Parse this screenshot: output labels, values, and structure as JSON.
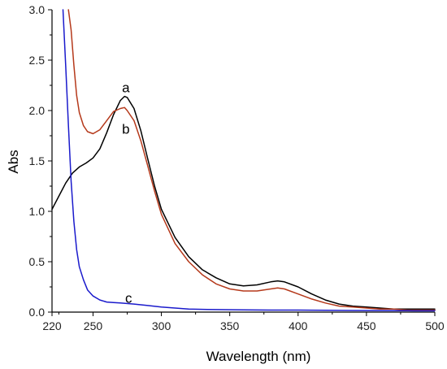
{
  "chart_data": {
    "type": "line",
    "title": "",
    "xlabel": "Wavelength (nm)",
    "ylabel": "Abs",
    "xlim": [
      220,
      500
    ],
    "ylim": [
      0,
      3.0
    ],
    "xticks": [
      220,
      250,
      300,
      350,
      400,
      450,
      500
    ],
    "xtick_labels": [
      "220",
      "250",
      "300",
      "350",
      "400",
      "450",
      "500"
    ],
    "yticks": [
      0,
      0.5,
      1.0,
      1.5,
      2.0,
      2.5,
      3.0
    ],
    "ytick_labels": [
      "0.0",
      "0.5",
      "1.0",
      "1.5",
      "2.0",
      "2.5",
      "3.0"
    ],
    "grid": false,
    "legend": "none",
    "series": [
      {
        "name": "a",
        "color": "#000000",
        "label_at": [
          274,
          2.23
        ],
        "x": [
          220,
          225,
          230,
          235,
          240,
          245,
          250,
          255,
          260,
          265,
          270,
          273,
          275,
          280,
          285,
          290,
          295,
          300,
          310,
          320,
          330,
          340,
          350,
          360,
          370,
          380,
          385,
          390,
          400,
          410,
          420,
          430,
          440,
          450,
          460,
          470,
          480,
          490,
          500
        ],
        "y": [
          1.02,
          1.15,
          1.28,
          1.38,
          1.44,
          1.48,
          1.53,
          1.62,
          1.78,
          1.96,
          2.1,
          2.14,
          2.13,
          2.02,
          1.8,
          1.52,
          1.25,
          1.02,
          0.74,
          0.55,
          0.42,
          0.34,
          0.28,
          0.26,
          0.27,
          0.3,
          0.31,
          0.3,
          0.25,
          0.18,
          0.12,
          0.08,
          0.06,
          0.05,
          0.04,
          0.03,
          0.03,
          0.03,
          0.03
        ]
      },
      {
        "name": "b",
        "color": "#b5391b",
        "label_at": [
          274,
          1.82
        ],
        "x": [
          232,
          234,
          236,
          238,
          240,
          243,
          246,
          250,
          255,
          260,
          265,
          270,
          273,
          275,
          280,
          285,
          290,
          295,
          300,
          310,
          320,
          330,
          340,
          350,
          360,
          370,
          380,
          385,
          390,
          400,
          410,
          420,
          430,
          440,
          450,
          460,
          470,
          480,
          490,
          500
        ],
        "y": [
          3.0,
          2.8,
          2.45,
          2.15,
          1.98,
          1.85,
          1.79,
          1.77,
          1.81,
          1.9,
          1.99,
          2.02,
          2.03,
          2.0,
          1.9,
          1.7,
          1.45,
          1.2,
          0.97,
          0.68,
          0.5,
          0.37,
          0.28,
          0.23,
          0.21,
          0.21,
          0.23,
          0.24,
          0.23,
          0.18,
          0.13,
          0.09,
          0.06,
          0.05,
          0.04,
          0.03,
          0.03,
          0.02,
          0.02,
          0.02
        ]
      },
      {
        "name": "c",
        "color": "#1a1acc",
        "label_at": [
          276,
          0.14
        ],
        "x": [
          228,
          230,
          232,
          234,
          236,
          238,
          240,
          243,
          246,
          250,
          255,
          260,
          265,
          270,
          280,
          290,
          300,
          320,
          340,
          360,
          380,
          400,
          420,
          440,
          460,
          480,
          500
        ],
        "y": [
          3.0,
          2.45,
          1.85,
          1.3,
          0.9,
          0.62,
          0.45,
          0.32,
          0.22,
          0.16,
          0.12,
          0.1,
          0.095,
          0.09,
          0.08,
          0.065,
          0.05,
          0.03,
          0.025,
          0.022,
          0.02,
          0.02,
          0.018,
          0.016,
          0.015,
          0.014,
          0.013
        ]
      }
    ]
  }
}
